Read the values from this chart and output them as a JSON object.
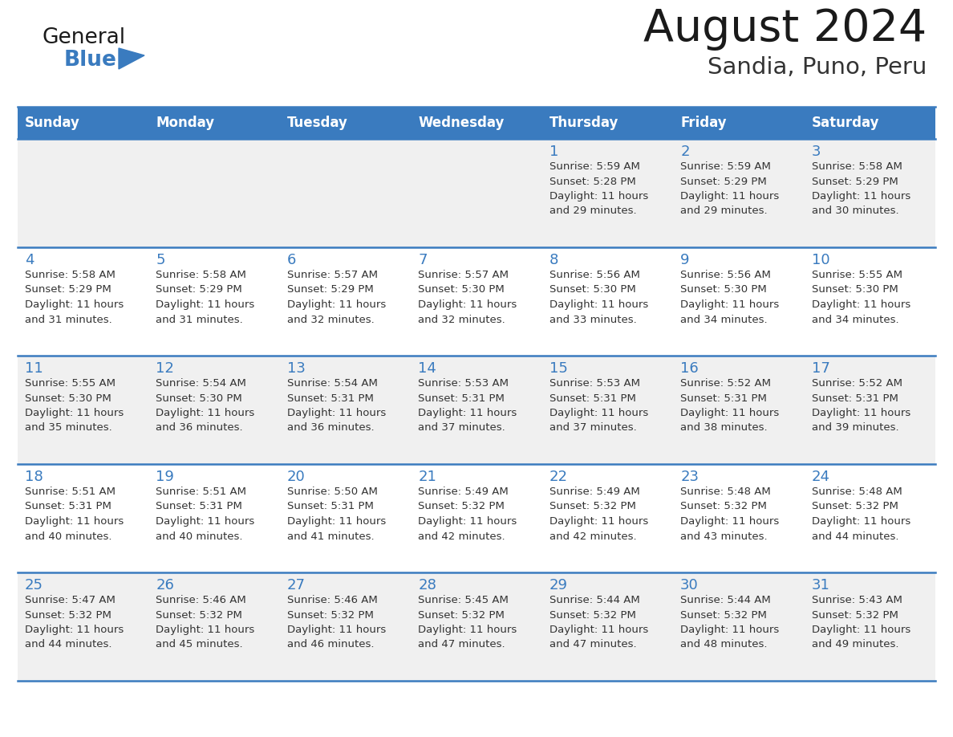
{
  "title": "August 2024",
  "subtitle": "Sandia, Puno, Peru",
  "days_of_week": [
    "Sunday",
    "Monday",
    "Tuesday",
    "Wednesday",
    "Thursday",
    "Friday",
    "Saturday"
  ],
  "header_bg": "#3a7bbf",
  "header_text": "#ffffff",
  "row_bg_odd": "#f0f0f0",
  "row_bg_even": "#ffffff",
  "day_number_color": "#3a7bbf",
  "cell_text_color": "#333333",
  "border_color": "#3a7bbf",
  "title_color": "#1a1a1a",
  "subtitle_color": "#333333",
  "logo_text_color": "#1a1a1a",
  "logo_blue_color": "#3a7bbf",
  "calendar_data": [
    [
      null,
      null,
      null,
      null,
      {
        "day": 1,
        "sunrise": "5:59 AM",
        "sunset": "5:28 PM",
        "daylight": "11 hours and 29 minutes."
      },
      {
        "day": 2,
        "sunrise": "5:59 AM",
        "sunset": "5:29 PM",
        "daylight": "11 hours and 29 minutes."
      },
      {
        "day": 3,
        "sunrise": "5:58 AM",
        "sunset": "5:29 PM",
        "daylight": "11 hours and 30 minutes."
      }
    ],
    [
      {
        "day": 4,
        "sunrise": "5:58 AM",
        "sunset": "5:29 PM",
        "daylight": "11 hours and 31 minutes."
      },
      {
        "day": 5,
        "sunrise": "5:58 AM",
        "sunset": "5:29 PM",
        "daylight": "11 hours and 31 minutes."
      },
      {
        "day": 6,
        "sunrise": "5:57 AM",
        "sunset": "5:29 PM",
        "daylight": "11 hours and 32 minutes."
      },
      {
        "day": 7,
        "sunrise": "5:57 AM",
        "sunset": "5:30 PM",
        "daylight": "11 hours and 32 minutes."
      },
      {
        "day": 8,
        "sunrise": "5:56 AM",
        "sunset": "5:30 PM",
        "daylight": "11 hours and 33 minutes."
      },
      {
        "day": 9,
        "sunrise": "5:56 AM",
        "sunset": "5:30 PM",
        "daylight": "11 hours and 34 minutes."
      },
      {
        "day": 10,
        "sunrise": "5:55 AM",
        "sunset": "5:30 PM",
        "daylight": "11 hours and 34 minutes."
      }
    ],
    [
      {
        "day": 11,
        "sunrise": "5:55 AM",
        "sunset": "5:30 PM",
        "daylight": "11 hours and 35 minutes."
      },
      {
        "day": 12,
        "sunrise": "5:54 AM",
        "sunset": "5:30 PM",
        "daylight": "11 hours and 36 minutes."
      },
      {
        "day": 13,
        "sunrise": "5:54 AM",
        "sunset": "5:31 PM",
        "daylight": "11 hours and 36 minutes."
      },
      {
        "day": 14,
        "sunrise": "5:53 AM",
        "sunset": "5:31 PM",
        "daylight": "11 hours and 37 minutes."
      },
      {
        "day": 15,
        "sunrise": "5:53 AM",
        "sunset": "5:31 PM",
        "daylight": "11 hours and 37 minutes."
      },
      {
        "day": 16,
        "sunrise": "5:52 AM",
        "sunset": "5:31 PM",
        "daylight": "11 hours and 38 minutes."
      },
      {
        "day": 17,
        "sunrise": "5:52 AM",
        "sunset": "5:31 PM",
        "daylight": "11 hours and 39 minutes."
      }
    ],
    [
      {
        "day": 18,
        "sunrise": "5:51 AM",
        "sunset": "5:31 PM",
        "daylight": "11 hours and 40 minutes."
      },
      {
        "day": 19,
        "sunrise": "5:51 AM",
        "sunset": "5:31 PM",
        "daylight": "11 hours and 40 minutes."
      },
      {
        "day": 20,
        "sunrise": "5:50 AM",
        "sunset": "5:31 PM",
        "daylight": "11 hours and 41 minutes."
      },
      {
        "day": 21,
        "sunrise": "5:49 AM",
        "sunset": "5:32 PM",
        "daylight": "11 hours and 42 minutes."
      },
      {
        "day": 22,
        "sunrise": "5:49 AM",
        "sunset": "5:32 PM",
        "daylight": "11 hours and 42 minutes."
      },
      {
        "day": 23,
        "sunrise": "5:48 AM",
        "sunset": "5:32 PM",
        "daylight": "11 hours and 43 minutes."
      },
      {
        "day": 24,
        "sunrise": "5:48 AM",
        "sunset": "5:32 PM",
        "daylight": "11 hours and 44 minutes."
      }
    ],
    [
      {
        "day": 25,
        "sunrise": "5:47 AM",
        "sunset": "5:32 PM",
        "daylight": "11 hours and 44 minutes."
      },
      {
        "day": 26,
        "sunrise": "5:46 AM",
        "sunset": "5:32 PM",
        "daylight": "11 hours and 45 minutes."
      },
      {
        "day": 27,
        "sunrise": "5:46 AM",
        "sunset": "5:32 PM",
        "daylight": "11 hours and 46 minutes."
      },
      {
        "day": 28,
        "sunrise": "5:45 AM",
        "sunset": "5:32 PM",
        "daylight": "11 hours and 47 minutes."
      },
      {
        "day": 29,
        "sunrise": "5:44 AM",
        "sunset": "5:32 PM",
        "daylight": "11 hours and 47 minutes."
      },
      {
        "day": 30,
        "sunrise": "5:44 AM",
        "sunset": "5:32 PM",
        "daylight": "11 hours and 48 minutes."
      },
      {
        "day": 31,
        "sunrise": "5:43 AM",
        "sunset": "5:32 PM",
        "daylight": "11 hours and 49 minutes."
      }
    ]
  ]
}
